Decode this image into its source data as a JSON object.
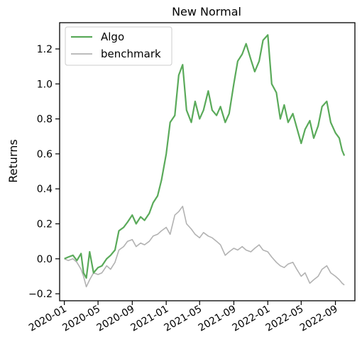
{
  "chart_data": {
    "type": "line",
    "title": "New Normal",
    "xlabel": "",
    "ylabel": "Returns",
    "ylim": [
      -0.24,
      1.35
    ],
    "xlim": [
      "2019-12-15",
      "2022-11-10"
    ],
    "grid": false,
    "legend_position": "top-left",
    "x_ticks": [
      "2020-01",
      "2020-05",
      "2020-09",
      "2021-01",
      "2021-05",
      "2021-09",
      "2022-01",
      "2022-05",
      "2022-09"
    ],
    "y_ticks": [
      "−0.2",
      "0.0",
      "0.2",
      "0.4",
      "0.6",
      "0.8",
      "1.0",
      "1.2"
    ],
    "y_tick_values": [
      -0.2,
      0.0,
      0.2,
      0.4,
      0.6,
      0.8,
      1.0,
      1.2
    ],
    "series": [
      {
        "name": "Algo",
        "color": "#5aaa5a",
        "points": [
          [
            "2020-01-01",
            0.0
          ],
          [
            "2020-01-15",
            0.01
          ],
          [
            "2020-02-01",
            0.02
          ],
          [
            "2020-02-15",
            -0.01
          ],
          [
            "2020-03-01",
            0.03
          ],
          [
            "2020-03-10",
            -0.08
          ],
          [
            "2020-03-20",
            -0.11
          ],
          [
            "2020-04-01",
            0.04
          ],
          [
            "2020-04-15",
            -0.08
          ],
          [
            "2020-05-01",
            -0.05
          ],
          [
            "2020-05-15",
            -0.04
          ],
          [
            "2020-06-01",
            0.0
          ],
          [
            "2020-06-15",
            0.02
          ],
          [
            "2020-07-01",
            0.05
          ],
          [
            "2020-07-15",
            0.16
          ],
          [
            "2020-08-01",
            0.18
          ],
          [
            "2020-08-15",
            0.21
          ],
          [
            "2020-09-01",
            0.25
          ],
          [
            "2020-09-15",
            0.2
          ],
          [
            "2020-10-01",
            0.24
          ],
          [
            "2020-10-15",
            0.22
          ],
          [
            "2020-11-01",
            0.26
          ],
          [
            "2020-11-15",
            0.32
          ],
          [
            "2020-12-01",
            0.36
          ],
          [
            "2020-12-15",
            0.45
          ],
          [
            "2021-01-01",
            0.6
          ],
          [
            "2021-01-15",
            0.78
          ],
          [
            "2021-02-01",
            0.82
          ],
          [
            "2021-02-15",
            1.05
          ],
          [
            "2021-03-01",
            1.11
          ],
          [
            "2021-03-15",
            0.85
          ],
          [
            "2021-04-01",
            0.78
          ],
          [
            "2021-04-15",
            0.9
          ],
          [
            "2021-05-01",
            0.8
          ],
          [
            "2021-05-15",
            0.85
          ],
          [
            "2021-06-01",
            0.96
          ],
          [
            "2021-06-15",
            0.85
          ],
          [
            "2021-07-01",
            0.82
          ],
          [
            "2021-07-15",
            0.87
          ],
          [
            "2021-08-01",
            0.78
          ],
          [
            "2021-08-15",
            0.83
          ],
          [
            "2021-09-01",
            1.0
          ],
          [
            "2021-09-15",
            1.13
          ],
          [
            "2021-10-01",
            1.17
          ],
          [
            "2021-10-15",
            1.23
          ],
          [
            "2021-11-01",
            1.14
          ],
          [
            "2021-11-15",
            1.07
          ],
          [
            "2021-12-01",
            1.13
          ],
          [
            "2021-12-15",
            1.25
          ],
          [
            "2022-01-01",
            1.28
          ],
          [
            "2022-01-15",
            1.0
          ],
          [
            "2022-02-01",
            0.95
          ],
          [
            "2022-02-15",
            0.8
          ],
          [
            "2022-03-01",
            0.88
          ],
          [
            "2022-03-15",
            0.78
          ],
          [
            "2022-04-01",
            0.83
          ],
          [
            "2022-04-15",
            0.75
          ],
          [
            "2022-05-01",
            0.66
          ],
          [
            "2022-05-15",
            0.74
          ],
          [
            "2022-06-01",
            0.79
          ],
          [
            "2022-06-15",
            0.69
          ],
          [
            "2022-07-01",
            0.76
          ],
          [
            "2022-07-15",
            0.87
          ],
          [
            "2022-08-01",
            0.9
          ],
          [
            "2022-08-15",
            0.78
          ],
          [
            "2022-09-01",
            0.72
          ],
          [
            "2022-09-15",
            0.69
          ],
          [
            "2022-09-25",
            0.62
          ],
          [
            "2022-10-03",
            0.59
          ]
        ]
      },
      {
        "name": "benchmark",
        "color": "#b2b2b2",
        "points": [
          [
            "2020-01-01",
            0.0
          ],
          [
            "2020-01-15",
            -0.01
          ],
          [
            "2020-02-01",
            0.0
          ],
          [
            "2020-02-15",
            -0.02
          ],
          [
            "2020-03-01",
            -0.06
          ],
          [
            "2020-03-10",
            -0.1
          ],
          [
            "2020-03-20",
            -0.16
          ],
          [
            "2020-04-01",
            -0.12
          ],
          [
            "2020-04-15",
            -0.08
          ],
          [
            "2020-05-01",
            -0.09
          ],
          [
            "2020-05-15",
            -0.08
          ],
          [
            "2020-06-01",
            -0.04
          ],
          [
            "2020-06-15",
            -0.06
          ],
          [
            "2020-07-01",
            -0.02
          ],
          [
            "2020-07-15",
            0.05
          ],
          [
            "2020-08-01",
            0.07
          ],
          [
            "2020-08-15",
            0.1
          ],
          [
            "2020-09-01",
            0.11
          ],
          [
            "2020-09-15",
            0.07
          ],
          [
            "2020-10-01",
            0.09
          ],
          [
            "2020-10-15",
            0.08
          ],
          [
            "2020-11-01",
            0.1
          ],
          [
            "2020-11-15",
            0.13
          ],
          [
            "2020-12-01",
            0.14
          ],
          [
            "2020-12-15",
            0.16
          ],
          [
            "2021-01-01",
            0.18
          ],
          [
            "2021-01-15",
            0.14
          ],
          [
            "2021-02-01",
            0.25
          ],
          [
            "2021-02-15",
            0.27
          ],
          [
            "2021-03-01",
            0.3
          ],
          [
            "2021-03-15",
            0.2
          ],
          [
            "2021-04-01",
            0.17
          ],
          [
            "2021-04-15",
            0.14
          ],
          [
            "2021-05-01",
            0.12
          ],
          [
            "2021-05-15",
            0.15
          ],
          [
            "2021-06-01",
            0.13
          ],
          [
            "2021-06-15",
            0.12
          ],
          [
            "2021-07-01",
            0.1
          ],
          [
            "2021-07-15",
            0.08
          ],
          [
            "2021-08-01",
            0.02
          ],
          [
            "2021-08-15",
            0.04
          ],
          [
            "2021-09-01",
            0.06
          ],
          [
            "2021-09-15",
            0.05
          ],
          [
            "2021-10-01",
            0.07
          ],
          [
            "2021-10-15",
            0.05
          ],
          [
            "2021-11-01",
            0.04
          ],
          [
            "2021-11-15",
            0.06
          ],
          [
            "2021-12-01",
            0.08
          ],
          [
            "2021-12-15",
            0.05
          ],
          [
            "2022-01-01",
            0.04
          ],
          [
            "2022-01-15",
            0.01
          ],
          [
            "2022-02-01",
            -0.02
          ],
          [
            "2022-02-15",
            -0.04
          ],
          [
            "2022-03-01",
            -0.05
          ],
          [
            "2022-03-15",
            -0.03
          ],
          [
            "2022-04-01",
            -0.02
          ],
          [
            "2022-04-15",
            -0.06
          ],
          [
            "2022-05-01",
            -0.1
          ],
          [
            "2022-05-15",
            -0.08
          ],
          [
            "2022-06-01",
            -0.14
          ],
          [
            "2022-06-15",
            -0.12
          ],
          [
            "2022-07-01",
            -0.1
          ],
          [
            "2022-07-15",
            -0.06
          ],
          [
            "2022-08-01",
            -0.04
          ],
          [
            "2022-08-15",
            -0.08
          ],
          [
            "2022-09-01",
            -0.1
          ],
          [
            "2022-09-15",
            -0.12
          ],
          [
            "2022-09-25",
            -0.14
          ],
          [
            "2022-10-03",
            -0.15
          ]
        ]
      }
    ]
  }
}
